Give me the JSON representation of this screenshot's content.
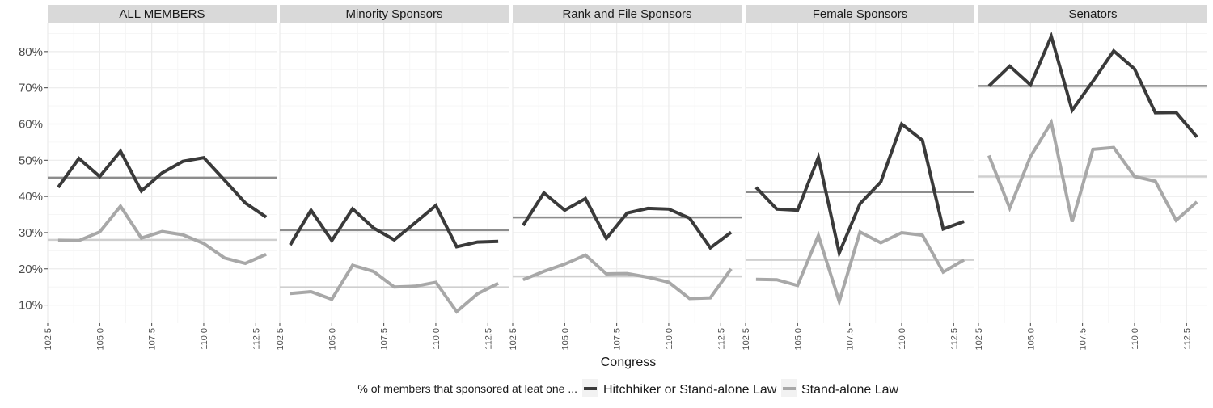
{
  "chart_data": {
    "type": "line",
    "xlabel": "Congress",
    "ylabel": "",
    "xlim": [
      102.5,
      113.5
    ],
    "ylim": [
      0.05,
      0.88
    ],
    "x_ticks": [
      102.5,
      105.0,
      107.5,
      110.0,
      112.5
    ],
    "x_tick_labels": [
      "102.5",
      "105.0",
      "107.5",
      "110.0",
      "112.5"
    ],
    "y_ticks": [
      0.1,
      0.2,
      0.3,
      0.4,
      0.5,
      0.6,
      0.7,
      0.8
    ],
    "y_tick_labels": [
      "10%",
      "20%",
      "30%",
      "40%",
      "50%",
      "60%",
      "70%",
      "80%"
    ],
    "grid": true,
    "legend": {
      "title": "% of members that sponsored at leat one ...",
      "placement": "bottom",
      "entries": [
        "Hitchhiker or Stand-alone Law",
        "Stand-alone Law"
      ]
    },
    "colors": {
      "hitchhiker": "#3a3a3a",
      "standalone": "#a8a8a8",
      "hitchhiker_mean": "#8c8c8c",
      "standalone_mean": "#cfcfcf",
      "strip": "#d9d9d9",
      "grid": "#ebebeb"
    },
    "x": [
      103,
      104,
      105,
      106,
      107,
      108,
      109,
      110,
      111,
      112,
      113
    ],
    "panels": [
      {
        "title": "ALL MEMBERS",
        "series": [
          {
            "name": "Hitchhiker or Stand-alone Law",
            "values": [
              0.425,
              0.505,
              0.455,
              0.525,
              0.415,
              0.465,
              0.497,
              0.507,
              0.445,
              0.382,
              0.343
            ],
            "mean": 0.452
          },
          {
            "name": "Stand-alone Law",
            "values": [
              0.279,
              0.278,
              0.302,
              0.373,
              0.285,
              0.303,
              0.294,
              0.27,
              0.23,
              0.215,
              0.24
            ],
            "mean": 0.28
          }
        ]
      },
      {
        "title": "Minority Sponsors",
        "series": [
          {
            "name": "Hitchhiker or Stand-alone Law",
            "values": [
              0.266,
              0.362,
              0.278,
              0.366,
              0.313,
              0.28,
              0.327,
              0.375,
              0.261,
              0.274,
              0.276
            ],
            "mean": 0.307
          },
          {
            "name": "Stand-alone Law",
            "values": [
              0.132,
              0.137,
              0.116,
              0.21,
              0.193,
              0.15,
              0.152,
              0.163,
              0.082,
              0.131,
              0.16
            ],
            "mean": 0.149
          }
        ]
      },
      {
        "title": "Rank and File Sponsors",
        "series": [
          {
            "name": "Hitchhiker or Stand-alone Law",
            "values": [
              0.32,
              0.41,
              0.362,
              0.394,
              0.284,
              0.354,
              0.367,
              0.365,
              0.34,
              0.258,
              0.301
            ],
            "mean": 0.342
          },
          {
            "name": "Stand-alone Law",
            "values": [
              0.17,
              0.193,
              0.213,
              0.238,
              0.186,
              0.187,
              0.177,
              0.163,
              0.118,
              0.12,
              0.2
            ],
            "mean": 0.179
          }
        ]
      },
      {
        "title": "Female Sponsors",
        "series": [
          {
            "name": "Hitchhiker or Stand-alone Law",
            "values": [
              0.425,
              0.365,
              0.362,
              0.508,
              0.244,
              0.38,
              0.44,
              0.6,
              0.555,
              0.31,
              0.331
            ],
            "mean": 0.412
          },
          {
            "name": "Stand-alone Law",
            "values": [
              0.171,
              0.17,
              0.154,
              0.292,
              0.11,
              0.302,
              0.272,
              0.3,
              0.293,
              0.191,
              0.225
            ],
            "mean": 0.225
          }
        ]
      },
      {
        "title": "Senators",
        "series": [
          {
            "name": "Hitchhiker or Stand-alone Law",
            "values": [
              0.705,
              0.76,
              0.708,
              0.842,
              0.638,
              0.718,
              0.802,
              0.752,
              0.631,
              0.632,
              0.564
            ],
            "mean": 0.705
          },
          {
            "name": "Stand-alone Law",
            "values": [
              0.513,
              0.368,
              0.51,
              0.604,
              0.33,
              0.53,
              0.535,
              0.455,
              0.442,
              0.334,
              0.385
            ],
            "mean": 0.455
          }
        ]
      }
    ]
  }
}
